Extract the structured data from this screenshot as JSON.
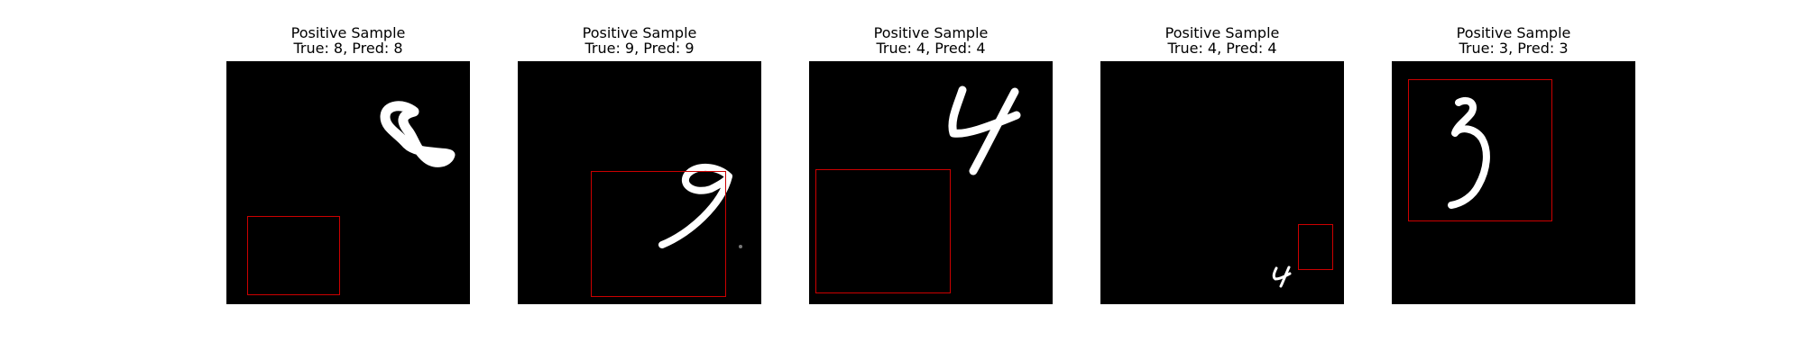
{
  "figure": {
    "box_color": "#cc0000",
    "background_color": "#000000",
    "panels": [
      {
        "title": "Positive Sample",
        "subtitle": "True: 8, Pred: 8",
        "digit": "8"
      },
      {
        "title": "Positive Sample",
        "subtitle": "True: 9, Pred: 9",
        "digit": "9"
      },
      {
        "title": "Positive Sample",
        "subtitle": "True: 4, Pred: 4",
        "digit": "4"
      },
      {
        "title": "Positive Sample",
        "subtitle": "True: 4, Pred: 4",
        "digit": "4"
      },
      {
        "title": "Positive Sample",
        "subtitle": "True: 3, Pred: 3",
        "digit": "3"
      }
    ]
  }
}
